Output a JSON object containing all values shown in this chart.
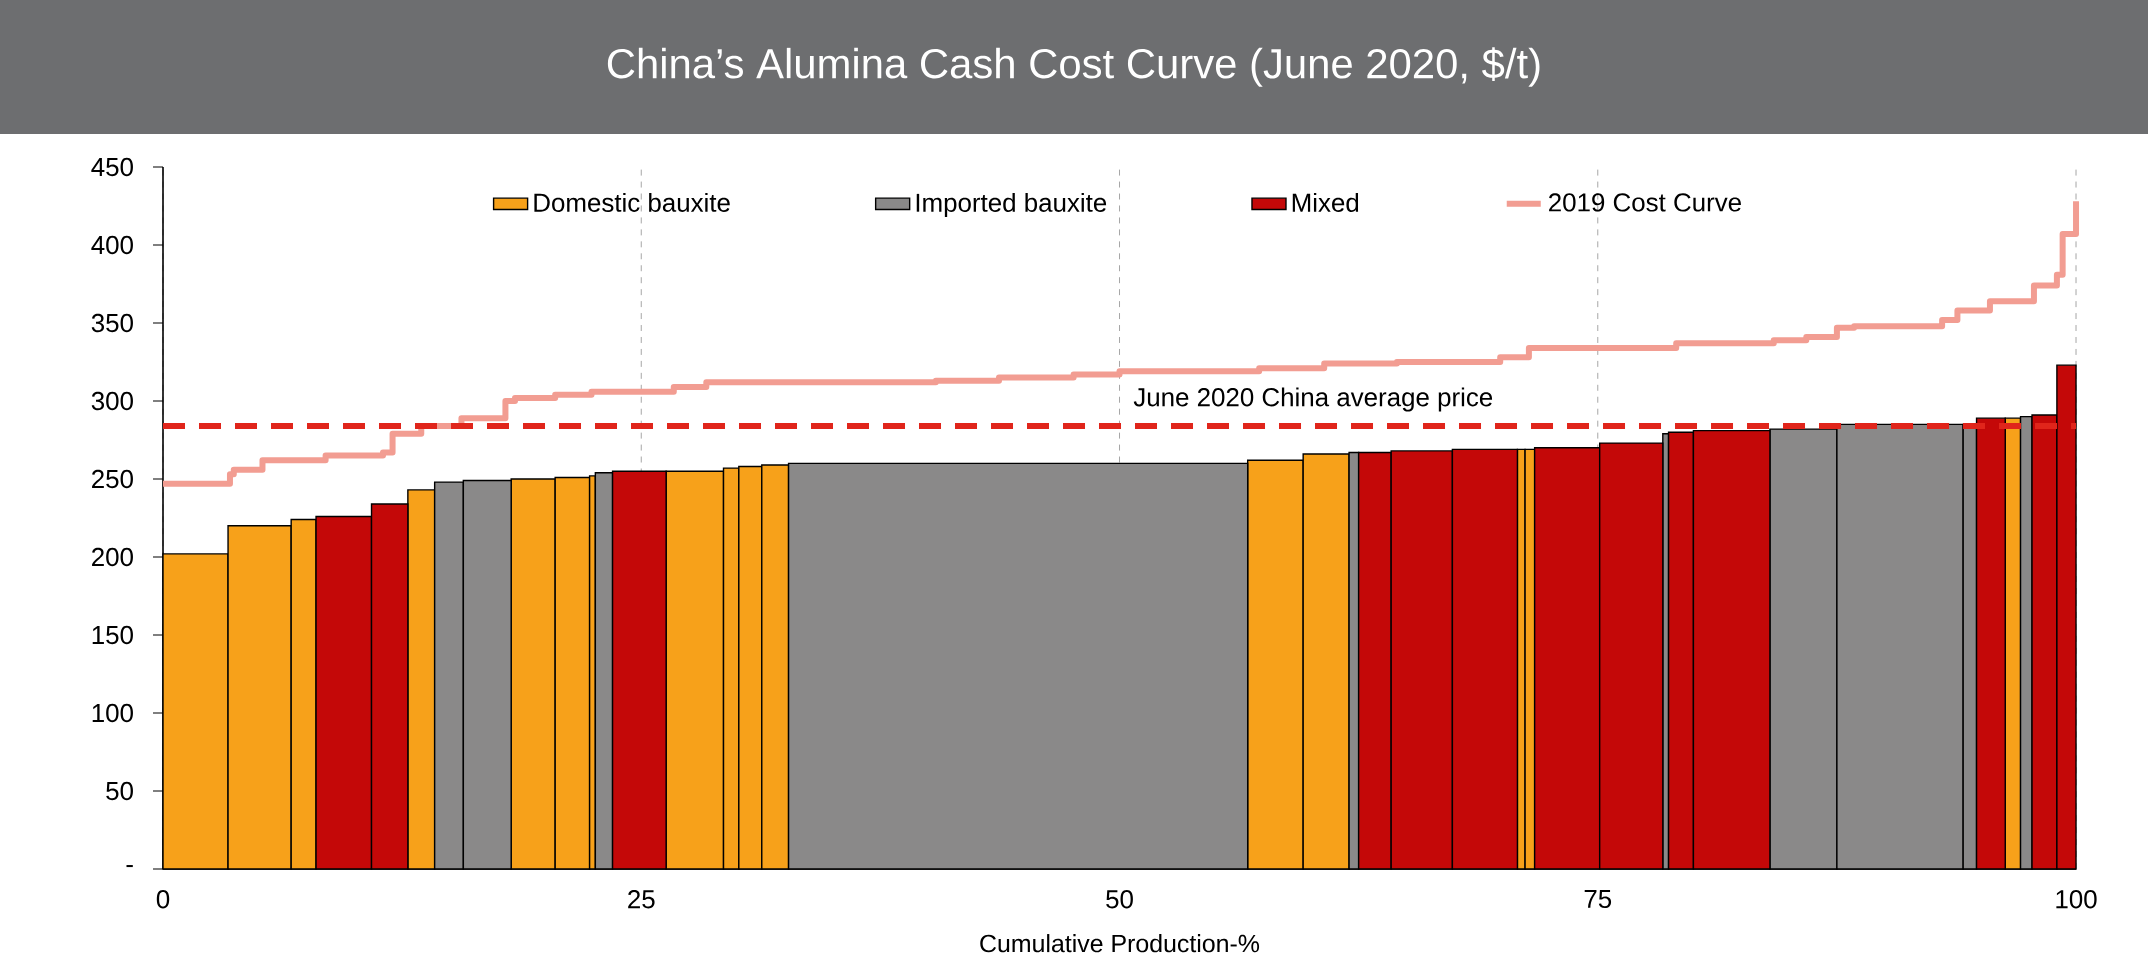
{
  "chart_data": {
    "type": "histogram",
    "title": "China’s Alumina Cash Cost Curve (June 2020, $/t)",
    "xlabel": "Cumulative Production-%",
    "bins": [
      0,
      3.4,
      6.7,
      8.0,
      10.9,
      12.8,
      14.2,
      15.7,
      18.2,
      20.5,
      22.3,
      22.6,
      23.5,
      26.3,
      29.3,
      30.1,
      31.3,
      32.7,
      56.7,
      59.6,
      62.0,
      62.5,
      64.2,
      67.4,
      70.8,
      71.2,
      71.7,
      75.1,
      78.4,
      78.7,
      80.0,
      84.0,
      87.5,
      94.1,
      94.8,
      96.3,
      97.1,
      97.7,
      99.0,
      100
    ],
    "series": [
      {
        "name": "Domestic bauxite",
        "color": "#f7a11a",
        "values": [
          202,
          220,
          224,
          null,
          null,
          243,
          null,
          null,
          250,
          251,
          252,
          null,
          null,
          255,
          257,
          258,
          259,
          null,
          262,
          266,
          null,
          null,
          null,
          null,
          269,
          269,
          null,
          null,
          null,
          null,
          null,
          null,
          null,
          null,
          null,
          289,
          null,
          null,
          null
        ]
      },
      {
        "name": "Imported bauxite",
        "color": "#8a8989",
        "values": [
          null,
          null,
          null,
          null,
          null,
          null,
          248,
          249,
          null,
          null,
          null,
          254,
          null,
          null,
          null,
          null,
          null,
          260,
          null,
          null,
          267,
          null,
          null,
          null,
          null,
          null,
          null,
          null,
          279,
          null,
          null,
          282,
          285,
          285,
          null,
          null,
          290,
          null,
          null
        ]
      },
      {
        "name": "Mixed",
        "color": "#c40808",
        "values": [
          null,
          null,
          null,
          226,
          234,
          null,
          null,
          null,
          null,
          null,
          null,
          null,
          255,
          null,
          null,
          null,
          null,
          null,
          null,
          null,
          null,
          267,
          268,
          269,
          null,
          null,
          270,
          273,
          null,
          280,
          281,
          null,
          null,
          null,
          289,
          null,
          null,
          291,
          323
        ]
      },
      {
        "name": "2019 Cost Curve",
        "type": "step",
        "color": "#f29d92",
        "x": [
          0,
          3.5,
          3.7,
          5.2,
          8.5,
          11.5,
          12,
          13.5,
          15.6,
          17.9,
          18.4,
          20.5,
          22.4,
          26.7,
          28.4,
          40.4,
          43.7,
          47.6,
          50,
          57.3,
          60.7,
          64.5,
          69.9,
          71.4,
          79.1,
          84.2,
          85.9,
          87.5,
          88.4,
          93.0,
          93.8,
          95.5,
          97.8,
          99.0,
          99.3,
          100
        ],
        "values": [
          247,
          253,
          256,
          262,
          265,
          267,
          279,
          284,
          289,
          300,
          302,
          304,
          306,
          309,
          312,
          313,
          315,
          317,
          319,
          321,
          324,
          325,
          328,
          334,
          337,
          339,
          341,
          347,
          348,
          352,
          358,
          364,
          374,
          381,
          407,
          428
        ]
      }
    ],
    "xlim": [
      0,
      100
    ],
    "xticks": [
      0,
      25,
      50,
      75,
      100
    ],
    "ylim": [
      0,
      450
    ],
    "yticks": [
      {
        "value": 0,
        "label": "-"
      },
      50,
      100,
      150,
      200,
      250,
      300,
      350,
      400,
      450
    ],
    "ref_lines": [
      {
        "axis": "y",
        "value": 284,
        "label": "June 2020 China average price",
        "color": "#e0251b",
        "line_style": "dashed"
      }
    ],
    "grid": "x",
    "legend": "top"
  }
}
